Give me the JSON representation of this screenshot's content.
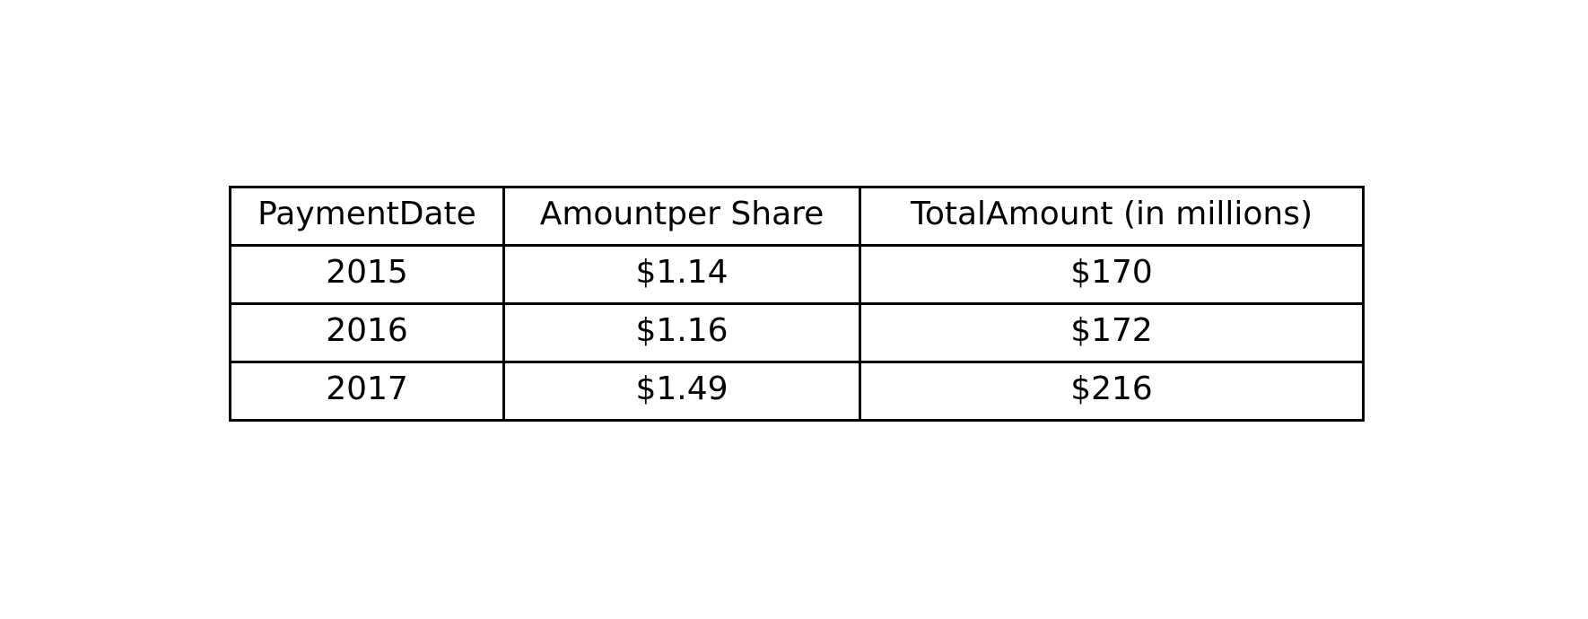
{
  "table": {
    "headers": [
      "PaymentDate",
      "Amountper Share",
      "TotalAmount (in millions)"
    ],
    "rows": [
      [
        "2015",
        "$1.14",
        "$170"
      ],
      [
        "2016",
        "$1.16",
        "$172"
      ],
      [
        "2017",
        "$1.49",
        "$216"
      ]
    ]
  }
}
